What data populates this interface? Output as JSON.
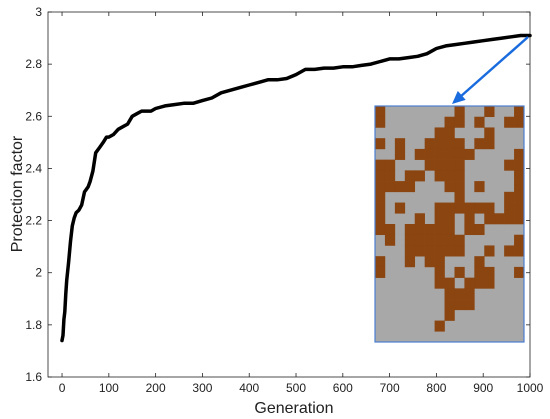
{
  "chart_data": {
    "type": "line",
    "xlabel": "Generation",
    "ylabel": "Protection factor",
    "xlim": [
      -30,
      1000
    ],
    "ylim": [
      1.6,
      3.0
    ],
    "xticks": [
      0,
      100,
      200,
      300,
      400,
      500,
      600,
      700,
      800,
      900,
      1000
    ],
    "yticks": [
      1.6,
      1.8,
      2.0,
      2.2,
      2.4,
      2.6,
      2.8,
      3.0
    ],
    "xtick_labels": [
      "0",
      "100",
      "200",
      "300",
      "400",
      "500",
      "600",
      "700",
      "800",
      "900",
      "1000"
    ],
    "ytick_labels": [
      "1.6",
      "1.8",
      "2",
      "2.2",
      "2.4",
      "2.6",
      "2.8",
      "3"
    ],
    "grid": false,
    "series": [
      {
        "color": "#000000",
        "x": [
          0,
          2,
          4,
          6,
          8,
          10,
          14,
          18,
          22,
          26,
          30,
          36,
          42,
          48,
          52,
          56,
          60,
          66,
          72,
          80,
          88,
          95,
          100,
          110,
          120,
          130,
          140,
          150,
          160,
          170,
          180,
          190,
          200,
          220,
          240,
          260,
          280,
          300,
          320,
          340,
          360,
          380,
          400,
          420,
          440,
          460,
          480,
          500,
          520,
          540,
          560,
          580,
          600,
          620,
          640,
          660,
          680,
          700,
          720,
          740,
          760,
          780,
          800,
          820,
          840,
          860,
          880,
          900,
          920,
          940,
          960,
          980,
          1000
        ],
        "y": [
          1.74,
          1.76,
          1.82,
          1.85,
          1.92,
          1.97,
          2.04,
          2.12,
          2.18,
          2.21,
          2.23,
          2.24,
          2.26,
          2.31,
          2.32,
          2.33,
          2.35,
          2.39,
          2.46,
          2.48,
          2.5,
          2.52,
          2.52,
          2.53,
          2.55,
          2.56,
          2.57,
          2.6,
          2.61,
          2.62,
          2.62,
          2.62,
          2.63,
          2.64,
          2.645,
          2.65,
          2.65,
          2.66,
          2.67,
          2.69,
          2.7,
          2.71,
          2.72,
          2.73,
          2.74,
          2.74,
          2.745,
          2.76,
          2.78,
          2.78,
          2.785,
          2.785,
          2.79,
          2.79,
          2.795,
          2.8,
          2.81,
          2.82,
          2.82,
          2.825,
          2.83,
          2.84,
          2.86,
          2.87,
          2.875,
          2.88,
          2.885,
          2.89,
          2.895,
          2.9,
          2.905,
          2.91,
          2.91
        ]
      }
    ],
    "inset": {
      "type": "grid-map",
      "rows": 22,
      "cols": 15,
      "colors": {
        "filled": "#8b4510",
        "empty": "#a8a8a8",
        "border": "#4a7fd0"
      },
      "cells": [
        "100000001001001",
        "100000011010011",
        "000000110001000",
        "101001111011000",
        "001011111100001",
        "110001111000011",
        "110110111000001",
        "111100011010001",
        "100000001000011",
        "101000111111011",
        "100010110101111",
        "110111110110000",
        "010111111000001",
        "000111111001011",
        "100101100010000",
        "100000101011001",
        "000000110111000",
        "000000011100000",
        "000000011100000",
        "000000010000000",
        "000000100000000",
        "000000000000000"
      ]
    },
    "annotation": {
      "type": "arrow",
      "color": "#1a6cde"
    }
  }
}
